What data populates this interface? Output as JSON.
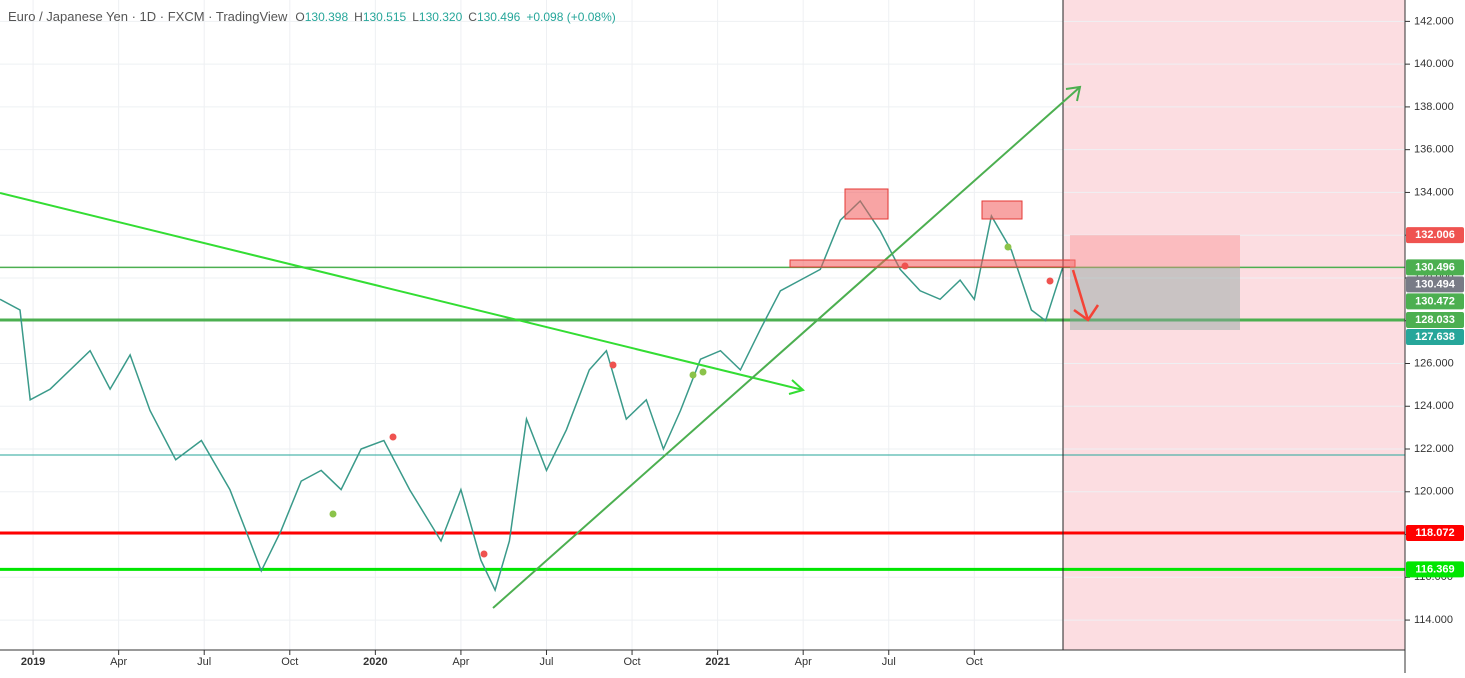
{
  "chart_data": {
    "type": "line",
    "title": "Euro / Japanese Yen · 1D · FXCM · TradingView",
    "ohlc": [
      {
        "label": "O",
        "value": "130.398"
      },
      {
        "label": "H",
        "value": "130.515"
      },
      {
        "label": "L",
        "value": "130.320"
      },
      {
        "label": "C",
        "value": "130.496"
      }
    ],
    "change": "+0.098 (+0.08%)",
    "color": "#3a9a8a",
    "x": [
      -1.16,
      -0.46,
      -0.1,
      0.6,
      2.0,
      2.7,
      3.4,
      4.1,
      5.0,
      5.9,
      6.9,
      7.6,
      8.0,
      8.7,
      9.4,
      10.1,
      10.8,
      11.5,
      12.3,
      13.2,
      14.3,
      15.0,
      15.7,
      16.2,
      16.7,
      17.3,
      18.0,
      18.7,
      19.5,
      20.1,
      20.8,
      21.5,
      22.1,
      22.7,
      23.4,
      24.1,
      24.8,
      25.5,
      26.2,
      26.9,
      27.6,
      28.3,
      29.0,
      29.7,
      30.4,
      31.1,
      31.8,
      32.5,
      33.0,
      33.6,
      34.3,
      35.0,
      35.5,
      36.1
    ],
    "values": [
      129.0,
      128.5,
      124.3,
      124.8,
      126.6,
      124.8,
      126.4,
      123.8,
      121.5,
      122.4,
      120.1,
      117.7,
      116.3,
      118.2,
      120.5,
      121.0,
      120.1,
      122.0,
      122.4,
      120.1,
      117.7,
      120.1,
      116.8,
      115.4,
      117.7,
      123.4,
      121.0,
      122.9,
      125.7,
      126.6,
      123.4,
      124.3,
      122.0,
      123.8,
      126.2,
      126.6,
      125.7,
      127.6,
      129.4,
      129.9,
      130.4,
      132.7,
      133.6,
      132.2,
      130.4,
      129.4,
      129.0,
      129.9,
      129.0,
      132.9,
      131.3,
      128.5,
      128.0,
      130.496
    ],
    "xlim": [
      -1.16,
      48.1
    ],
    "ylim": [
      112.6,
      143
    ],
    "xticks": [
      {
        "value": 0,
        "label": "2019"
      },
      {
        "value": 3,
        "label": "Apr"
      },
      {
        "value": 6,
        "label": "Jul"
      },
      {
        "value": 9,
        "label": "Oct"
      },
      {
        "value": 12,
        "label": "2020"
      },
      {
        "value": 15,
        "label": "Apr"
      },
      {
        "value": 18,
        "label": "Jul"
      },
      {
        "value": 21,
        "label": "Oct"
      },
      {
        "value": 24,
        "label": "2021"
      },
      {
        "value": 27,
        "label": "Apr"
      },
      {
        "value": 30,
        "label": "Jul"
      },
      {
        "value": 33,
        "label": "Oct"
      }
    ],
    "yticks": [
      {
        "value": 114,
        "label": "114.000"
      },
      {
        "value": 116,
        "label": "116.000"
      },
      {
        "value": 118,
        "label": "118.000"
      },
      {
        "value": 120,
        "label": "120.000"
      },
      {
        "value": 122,
        "label": "122.000"
      },
      {
        "value": 124,
        "label": "124.000"
      },
      {
        "value": 126,
        "label": "126.000"
      },
      {
        "value": 128,
        "label": "128.000"
      },
      {
        "value": 130,
        "label": "130.000"
      },
      {
        "value": 132,
        "label": "132.000"
      },
      {
        "value": 134,
        "label": "134.000"
      },
      {
        "value": 136,
        "label": "136.000"
      },
      {
        "value": 138,
        "label": "138.000"
      },
      {
        "value": 140,
        "label": "140.000"
      },
      {
        "value": 142,
        "label": "142.000"
      }
    ],
    "grid": true,
    "levels": [
      {
        "value": 130.496,
        "color": "#4caf50"
      },
      {
        "value": 128.033,
        "color": "#4caf50"
      },
      {
        "value": 121.72,
        "color": "#26a69a"
      },
      {
        "value": 118.072,
        "color": "#ff0000"
      },
      {
        "value": 116.369,
        "color": "#00e600"
      }
    ],
    "price_labels": [
      {
        "value": 132.006,
        "color": "#ef5350"
      },
      {
        "value": 130.496,
        "color": "#4caf50"
      },
      {
        "value": 130.494,
        "color": "#787b86"
      },
      {
        "value": 130.472,
        "color": "#4caf50"
      },
      {
        "value": 128.033,
        "color": "#4caf50"
      },
      {
        "value": 127.638,
        "color": "#26a69a"
      },
      {
        "value": 118.072,
        "color": "#ff0000"
      },
      {
        "value": 116.369,
        "color": "#00e600"
      }
    ]
  }
}
